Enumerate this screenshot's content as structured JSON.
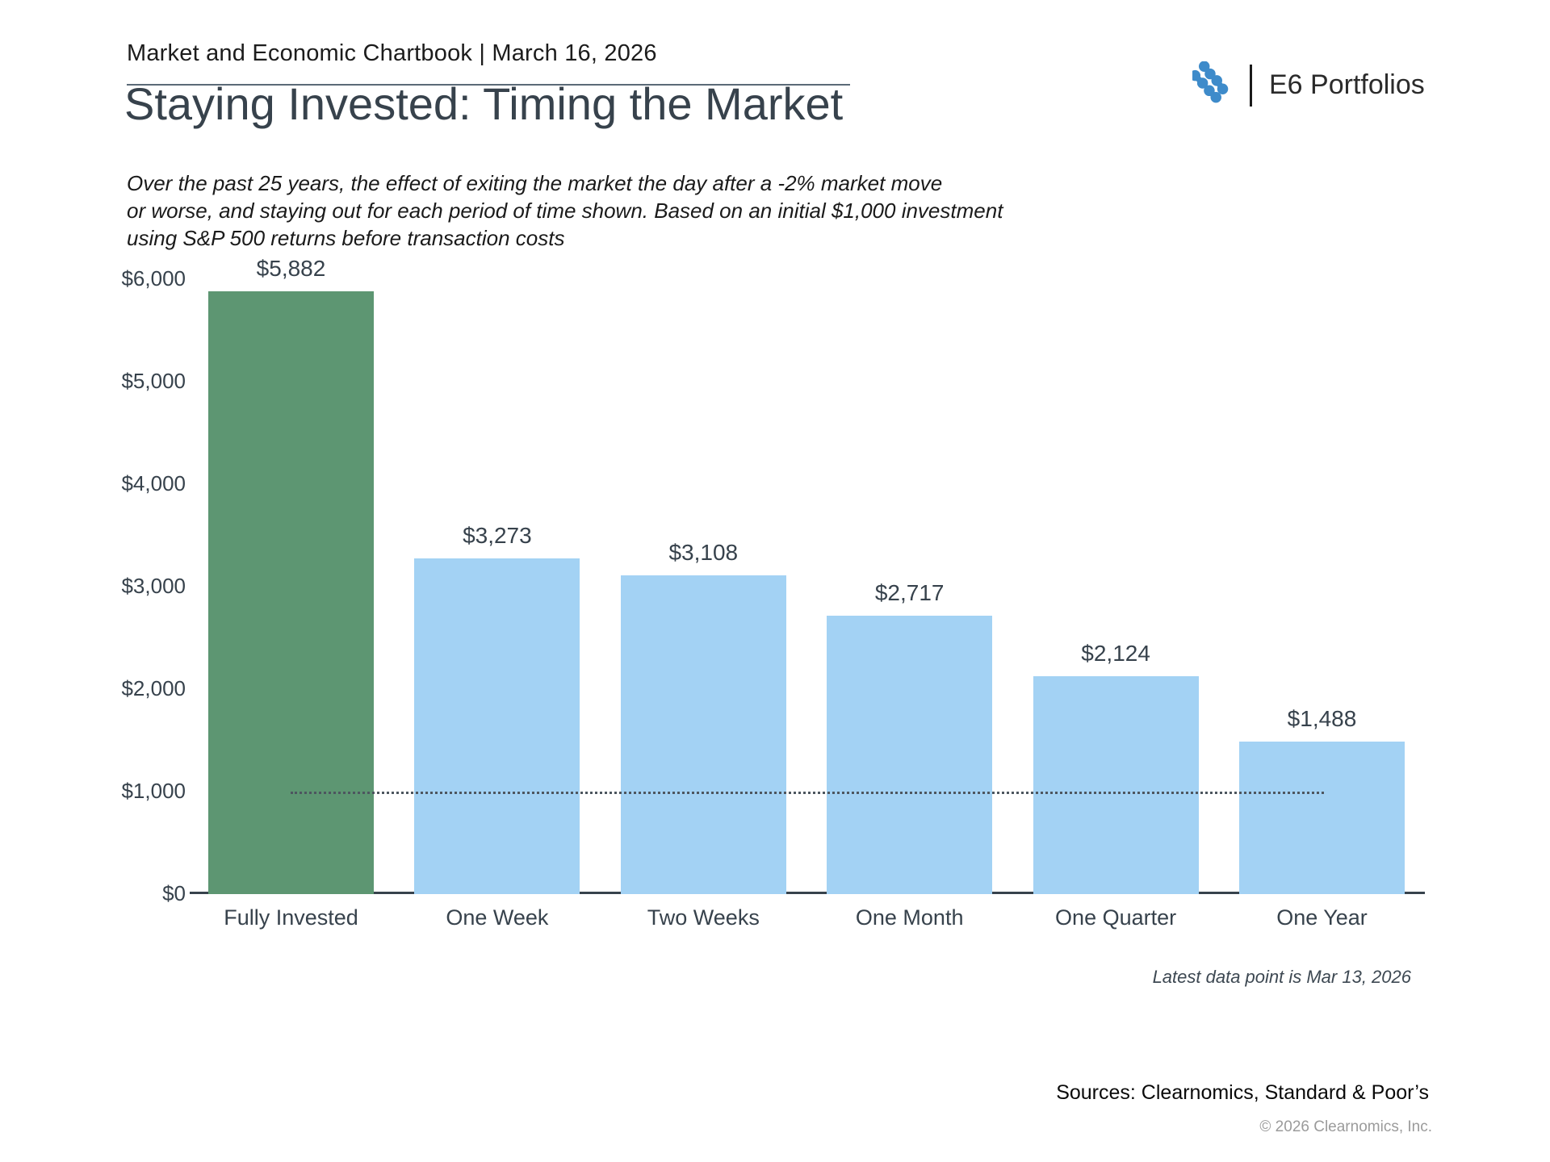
{
  "header": {
    "title": "Market and Economic Chartbook | March 16, 2026"
  },
  "logo": {
    "brand": "E6 Portfolios",
    "icon_color": "#3E8BCA"
  },
  "page": {
    "title": "Staying Invested: Timing the Market",
    "subtitle_lines": [
      "Over the past 25 years, the effect of exiting the market the day after a -2% market move",
      "or worse, and staying out for each period of time shown. Based on an initial $1,000 investment",
      "using S&P 500 returns before transaction costs"
    ]
  },
  "chart_data": {
    "type": "bar",
    "title": "Staying Invested: Timing the Market",
    "categories": [
      "Fully Invested",
      "One Week",
      "Two Weeks",
      "One Month",
      "One Quarter",
      "One Year"
    ],
    "values": [
      5882,
      3273,
      3108,
      2717,
      2124,
      1488
    ],
    "value_labels": [
      "$5,882",
      "$3,273",
      "$3,108",
      "$2,717",
      "$2,124",
      "$1,488"
    ],
    "bar_colors": [
      "#5d9672",
      "#a3d2f4",
      "#a3d2f4",
      "#a3d2f4",
      "#a3d2f4",
      "#a3d2f4"
    ],
    "xlabel": "",
    "ylabel": "",
    "ylim": [
      0,
      6000
    ],
    "ytick_step": 1000,
    "ytick_labels": [
      "$0",
      "$1,000",
      "$2,000",
      "$3,000",
      "$4,000",
      "$5,000",
      "$6,000"
    ],
    "grid": false,
    "legend": false,
    "reference_line": {
      "value": 1000,
      "style": "dotted",
      "meaning": "initial $1,000 investment"
    }
  },
  "footer": {
    "latest": "Latest data point is Mar 13, 2026",
    "sources": "Sources: Clearnomics, Standard & Poor’s",
    "copyright": "© 2026 Clearnomics, Inc."
  }
}
